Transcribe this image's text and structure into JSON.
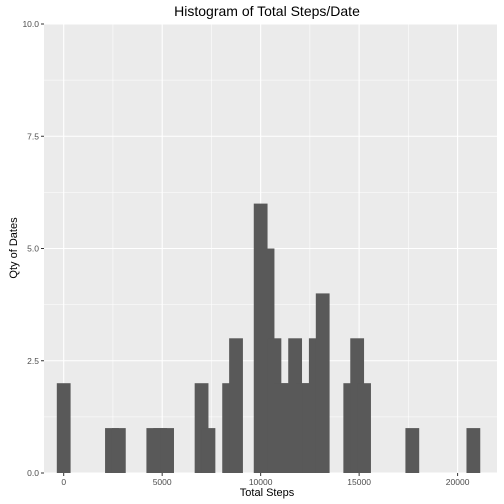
{
  "chart_data": {
    "type": "bar",
    "title": "Histogram of Total Steps/Date",
    "xlabel": "Total Steps",
    "ylabel": "Qty of Dates",
    "binwidth": 700,
    "xlim": [
      -1000,
      22000
    ],
    "ylim": [
      0,
      10
    ],
    "x_ticks": [
      0,
      5000,
      10000,
      15000,
      20000
    ],
    "x_tick_labels": [
      "0",
      "5000",
      "10000",
      "15000",
      "20000"
    ],
    "y_ticks": [
      0,
      2.5,
      5,
      7.5,
      10
    ],
    "y_tick_labels": [
      "0.0",
      "2.5",
      "5.0",
      "7.5",
      "10.0"
    ],
    "grid": true,
    "bins": [
      {
        "x": 0,
        "count": 2
      },
      {
        "x": 2450,
        "count": 1
      },
      {
        "x": 2800,
        "count": 1
      },
      {
        "x": 4550,
        "count": 1
      },
      {
        "x": 4900,
        "count": 1
      },
      {
        "x": 5250,
        "count": 1
      },
      {
        "x": 7000,
        "count": 2
      },
      {
        "x": 7350,
        "count": 1
      },
      {
        "x": 8400,
        "count": 2
      },
      {
        "x": 8750,
        "count": 3
      },
      {
        "x": 10000,
        "count": 6
      },
      {
        "x": 10350,
        "count": 5
      },
      {
        "x": 10700,
        "count": 3
      },
      {
        "x": 11050,
        "count": 2
      },
      {
        "x": 11400,
        "count": 2
      },
      {
        "x": 11750,
        "count": 3
      },
      {
        "x": 12100,
        "count": 2
      },
      {
        "x": 12450,
        "count": 2
      },
      {
        "x": 12800,
        "count": 3
      },
      {
        "x": 13150,
        "count": 4
      },
      {
        "x": 14550,
        "count": 2
      },
      {
        "x": 14900,
        "count": 3
      },
      {
        "x": 15250,
        "count": 2
      },
      {
        "x": 17700,
        "count": 1
      },
      {
        "x": 20800,
        "count": 1
      }
    ],
    "colors": {
      "panel": "#ebebeb",
      "grid_major": "#ffffff",
      "bar": "#595959"
    }
  }
}
